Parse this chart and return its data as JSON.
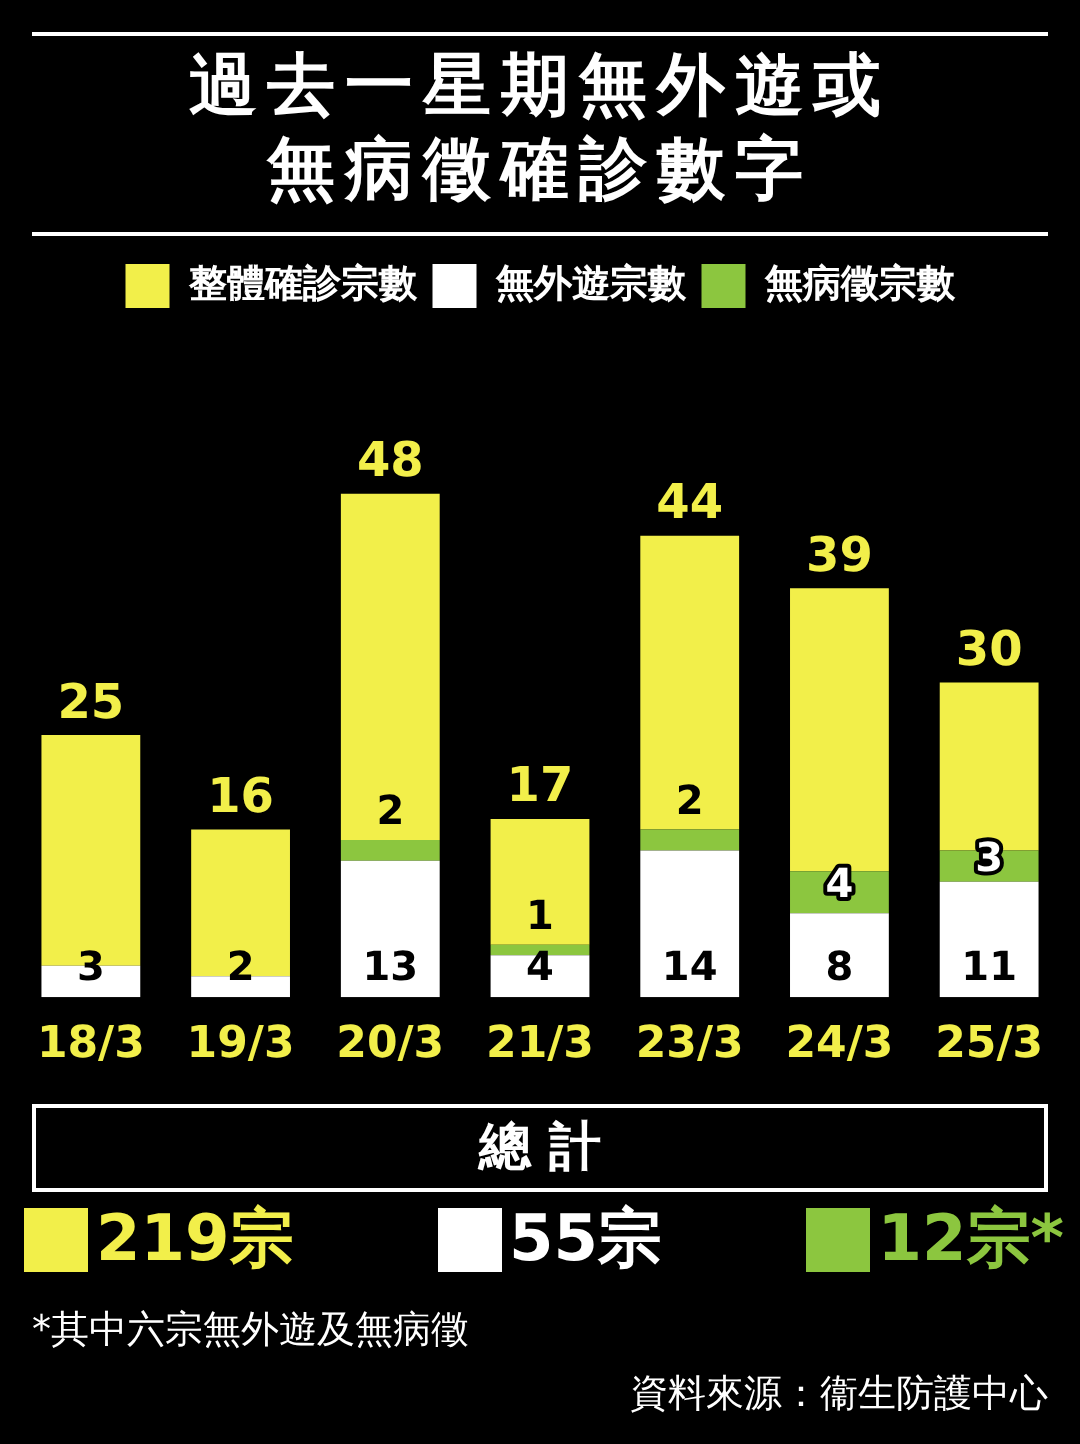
{
  "chart_data": {
    "type": "bar",
    "title": "過去一星期無外遊或無病徵確診數字",
    "categories": [
      "18/3",
      "19/3",
      "20/3",
      "21/3",
      "23/3",
      "24/3",
      "25/3"
    ],
    "stacked": true,
    "legend": "top",
    "series": [
      {
        "name": "無外遊宗數",
        "color": "#ffffff",
        "values": [
          3,
          2,
          13,
          4,
          14,
          8,
          11
        ],
        "value_labels": [
          "3",
          "2",
          "13",
          "4",
          "14",
          "8",
          "11"
        ]
      },
      {
        "name": "無病徵宗數",
        "color": "#8cc63f",
        "values": [
          0,
          0,
          2,
          1,
          2,
          4,
          3
        ],
        "value_labels": [
          null,
          null,
          "2",
          "1",
          "2",
          "4",
          "3"
        ]
      },
      {
        "name": "整體確診宗數",
        "color": "#f2ef4a",
        "values": [
          22,
          14,
          33,
          12,
          28,
          27,
          16
        ]
      }
    ],
    "totals": [
      "25",
      "16",
      "48",
      "17",
      "44",
      "39",
      "30"
    ],
    "annotations": [
      "總 計",
      "219宗",
      "55宗",
      "12宗*",
      "*其中六宗無外遊及無病徵",
      "資料來源：衞生防護中心"
    ]
  }
}
